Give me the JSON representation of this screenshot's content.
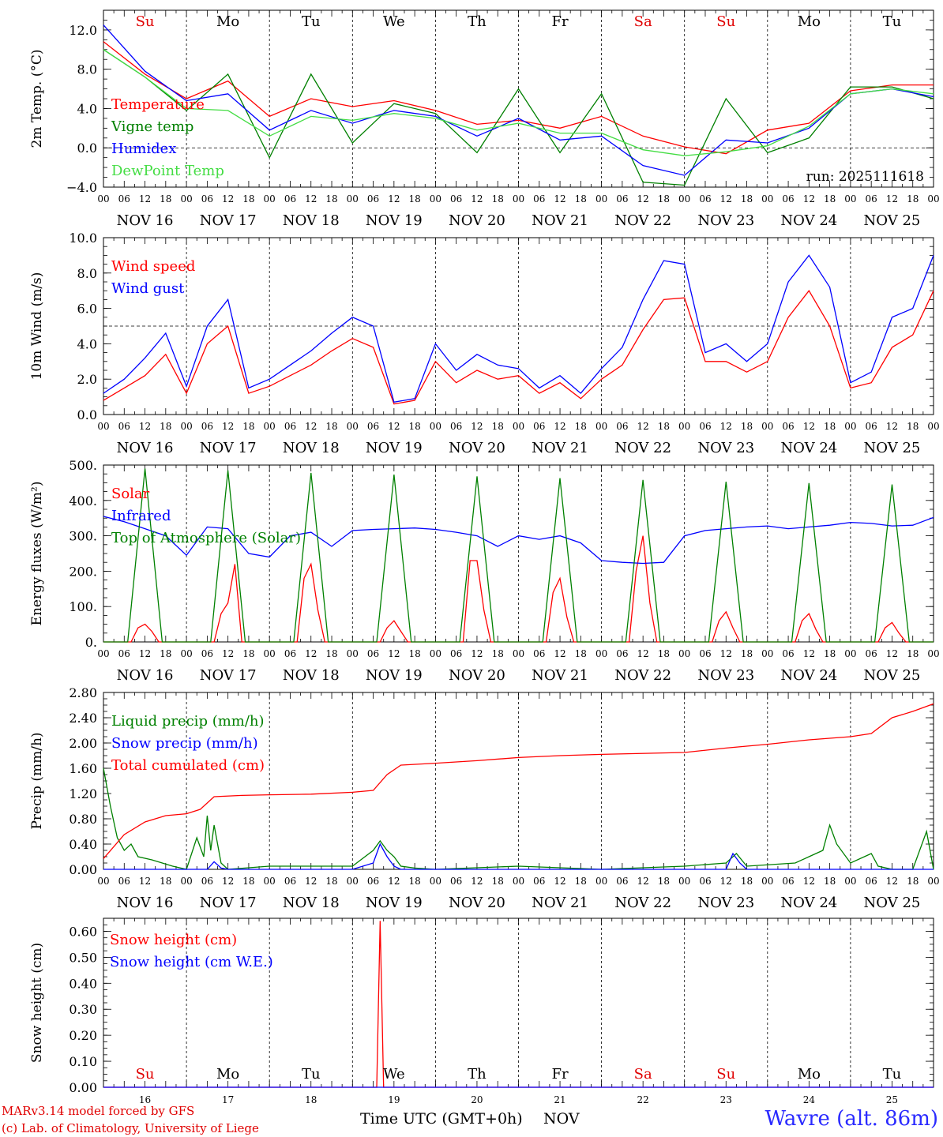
{
  "days": [
    "16",
    "17",
    "18",
    "19",
    "20",
    "21",
    "22",
    "23",
    "24",
    "25"
  ],
  "month": "NOV",
  "weekdays": [
    "Su",
    "Mo",
    "Tu",
    "We",
    "Th",
    "Fr",
    "Sa",
    "Su",
    "Mo",
    "Tu"
  ],
  "weekday_colors": [
    "#e00000",
    "#000000",
    "#000000",
    "#000000",
    "#000000",
    "#000000",
    "#e00000",
    "#e00000",
    "#000000",
    "#000000"
  ],
  "hour_ticks": [
    "00",
    "06",
    "12",
    "18"
  ],
  "hour_end": "00",
  "footer": {
    "model": "MARv3.14 model forced by GFS",
    "credit": "(c) Lab. of Climatology, University of Liege",
    "time_label": "Time UTC (GMT+0h)",
    "month_label": "NOV",
    "station": "Wavre (alt. 86m)"
  },
  "chart_data": [
    {
      "id": "temperature",
      "type": "line",
      "ylabel": "2m Temp. (°C)",
      "ylim": [
        -4,
        14
      ],
      "yticks": [
        -4,
        0,
        4,
        8,
        12
      ],
      "ytick_labels": [
        "−4.0",
        "0.0",
        "4.0",
        "8.0",
        "12.0"
      ],
      "dashed_ref": 0,
      "annotation": "run: 2025111618",
      "series": [
        {
          "name": "Temperature",
          "color": "#ff0000",
          "x": [
            0,
            12,
            24,
            36,
            48,
            60,
            72,
            84,
            96,
            108,
            120,
            132,
            144,
            156,
            168,
            180,
            192,
            204,
            216,
            228,
            240
          ],
          "values": [
            10.8,
            7.5,
            5.0,
            6.8,
            3.2,
            5.0,
            4.2,
            4.8,
            3.8,
            2.4,
            2.8,
            2.0,
            3.2,
            1.2,
            0.1,
            -0.6,
            1.8,
            2.5,
            5.8,
            6.4,
            6.4
          ]
        },
        {
          "name": "Vigne temp",
          "color": "#008000",
          "x": [
            0,
            12,
            24,
            36,
            48,
            60,
            72,
            84,
            96,
            108,
            120,
            132,
            144,
            156,
            168,
            180,
            192,
            204,
            216,
            228,
            240
          ],
          "values": [
            10.0,
            7.2,
            3.8,
            7.5,
            -1.0,
            7.5,
            0.5,
            4.5,
            3.5,
            -0.5,
            6.0,
            -0.5,
            5.5,
            -3.5,
            -3.8,
            5.0,
            -0.5,
            1.0,
            6.2,
            6.2,
            5.0
          ]
        },
        {
          "name": "Humidex",
          "color": "#0000ff",
          "x": [
            0,
            12,
            24,
            36,
            48,
            60,
            72,
            84,
            96,
            108,
            120,
            132,
            144,
            156,
            168,
            180,
            192,
            204,
            216,
            228,
            240
          ],
          "values": [
            12.5,
            7.8,
            4.8,
            5.5,
            1.8,
            3.8,
            2.5,
            3.8,
            3.2,
            1.2,
            3.0,
            0.8,
            1.2,
            -1.8,
            -2.8,
            0.8,
            0.5,
            2.0,
            5.5,
            6.0,
            5.2
          ]
        },
        {
          "name": "DewPoint Temp",
          "color": "#44dd44",
          "x": [
            0,
            12,
            24,
            36,
            48,
            60,
            72,
            84,
            96,
            108,
            120,
            132,
            144,
            156,
            168,
            180,
            192,
            204,
            216,
            228,
            240
          ],
          "values": [
            10.0,
            7.2,
            4.0,
            3.8,
            1.2,
            3.2,
            2.8,
            3.5,
            3.0,
            1.8,
            2.5,
            1.5,
            1.5,
            -0.2,
            -0.8,
            -0.4,
            0.2,
            2.2,
            5.5,
            6.0,
            5.5
          ]
        }
      ]
    },
    {
      "id": "wind",
      "type": "line",
      "ylabel": "10m Wind (m/s)",
      "ylim": [
        0,
        10
      ],
      "yticks": [
        0,
        2,
        4,
        6,
        8,
        10
      ],
      "ytick_labels": [
        "0.0",
        "2.0",
        "4.0",
        "6.0",
        "8.0",
        "10.0"
      ],
      "dashed_ref": 5,
      "series": [
        {
          "name": "Wind speed",
          "color": "#ff0000",
          "x": [
            0,
            6,
            12,
            18,
            24,
            30,
            36,
            42,
            48,
            54,
            60,
            66,
            72,
            78,
            84,
            90,
            96,
            102,
            108,
            114,
            120,
            126,
            132,
            138,
            144,
            150,
            156,
            162,
            168,
            174,
            180,
            186,
            192,
            198,
            204,
            210,
            216,
            222,
            228,
            234,
            240
          ],
          "values": [
            0.8,
            1.5,
            2.2,
            3.4,
            1.2,
            4.0,
            5.0,
            1.2,
            1.6,
            2.2,
            2.8,
            3.6,
            4.3,
            3.8,
            0.6,
            0.8,
            3.0,
            1.8,
            2.5,
            2.0,
            2.2,
            1.2,
            1.8,
            0.9,
            2.0,
            2.8,
            4.8,
            6.5,
            6.6,
            3.0,
            3.0,
            2.4,
            3.0,
            5.5,
            7.0,
            5.0,
            1.5,
            1.8,
            3.8,
            4.5,
            7.0
          ]
        },
        {
          "name": "Wind gust",
          "color": "#0000ff",
          "x": [
            0,
            6,
            12,
            18,
            24,
            30,
            36,
            42,
            48,
            54,
            60,
            66,
            72,
            78,
            84,
            90,
            96,
            102,
            108,
            114,
            120,
            126,
            132,
            138,
            144,
            150,
            156,
            162,
            168,
            174,
            180,
            186,
            192,
            198,
            204,
            210,
            216,
            222,
            228,
            234,
            240
          ],
          "values": [
            1.2,
            2.0,
            3.2,
            4.6,
            1.6,
            5.0,
            6.5,
            1.5,
            2.0,
            2.8,
            3.6,
            4.6,
            5.5,
            5.0,
            0.7,
            0.9,
            4.0,
            2.5,
            3.4,
            2.8,
            2.6,
            1.5,
            2.2,
            1.2,
            2.6,
            3.8,
            6.5,
            8.7,
            8.5,
            3.5,
            4.0,
            3.0,
            4.0,
            7.5,
            9.0,
            7.2,
            1.8,
            2.4,
            5.5,
            6.0,
            9.0
          ]
        }
      ]
    },
    {
      "id": "energy",
      "type": "line",
      "ylabel": "Energy fluxes (W/m²)",
      "ylim": [
        0,
        500
      ],
      "yticks": [
        0,
        100,
        200,
        300,
        400,
        500
      ],
      "ytick_labels": [
        "0.",
        "100.",
        "200.",
        "300.",
        "400.",
        "500."
      ],
      "series": [
        {
          "name": "Solar",
          "color": "#ff0000",
          "x": [
            0,
            8,
            10,
            12,
            14,
            16,
            24,
            32,
            34,
            36,
            38,
            40,
            48,
            56,
            58,
            60,
            62,
            64,
            72,
            80,
            82,
            84,
            86,
            88,
            96,
            104,
            106,
            108,
            110,
            112,
            120,
            128,
            130,
            132,
            134,
            136,
            144,
            152,
            154,
            156,
            158,
            160,
            168,
            176,
            178,
            180,
            182,
            184,
            192,
            200,
            202,
            204,
            206,
            208,
            216,
            224,
            226,
            228,
            230,
            232,
            240
          ],
          "values": [
            0,
            0,
            40,
            50,
            30,
            0,
            0,
            0,
            80,
            110,
            220,
            0,
            0,
            0,
            180,
            220,
            90,
            0,
            0,
            0,
            40,
            60,
            30,
            0,
            0,
            0,
            230,
            230,
            90,
            0,
            0,
            0,
            140,
            180,
            70,
            0,
            0,
            0,
            200,
            300,
            110,
            0,
            0,
            0,
            60,
            85,
            40,
            0,
            0,
            0,
            60,
            80,
            35,
            0,
            0,
            0,
            40,
            55,
            25,
            0,
            0
          ]
        },
        {
          "name": "Infrared",
          "color": "#0000ff",
          "x": [
            0,
            6,
            12,
            18,
            24,
            30,
            36,
            42,
            48,
            54,
            60,
            66,
            72,
            78,
            84,
            90,
            96,
            102,
            108,
            114,
            120,
            126,
            132,
            138,
            144,
            150,
            156,
            162,
            168,
            174,
            180,
            186,
            192,
            198,
            204,
            210,
            216,
            222,
            228,
            234,
            240
          ],
          "values": [
            355,
            340,
            320,
            300,
            245,
            325,
            320,
            250,
            240,
            300,
            310,
            270,
            315,
            318,
            320,
            322,
            318,
            310,
            300,
            270,
            300,
            290,
            300,
            280,
            230,
            225,
            222,
            225,
            300,
            315,
            320,
            325,
            328,
            320,
            325,
            330,
            338,
            335,
            328,
            330,
            352
          ]
        },
        {
          "name": "Top of Atmosphere (Solar)",
          "color": "#008000",
          "x": [
            0,
            7,
            12,
            17,
            24,
            31,
            36,
            41,
            48,
            55,
            60,
            65,
            72,
            79,
            84,
            89,
            96,
            103,
            108,
            113,
            120,
            127,
            132,
            137,
            144,
            151,
            156,
            161,
            168,
            175,
            180,
            185,
            192,
            199,
            204,
            209,
            216,
            223,
            228,
            233,
            240
          ],
          "values": [
            0,
            0,
            490,
            0,
            0,
            0,
            485,
            0,
            0,
            0,
            478,
            0,
            0,
            0,
            473,
            0,
            0,
            0,
            468,
            0,
            0,
            0,
            463,
            0,
            0,
            0,
            458,
            0,
            0,
            0,
            453,
            0,
            0,
            0,
            449,
            0,
            0,
            0,
            445,
            0,
            0
          ]
        }
      ]
    },
    {
      "id": "precip",
      "type": "line",
      "ylabel": "Precip (mm/h)",
      "ylim": [
        0,
        2.8
      ],
      "yticks": [
        0,
        0.4,
        0.8,
        1.2,
        1.6,
        2.0,
        2.4,
        2.8
      ],
      "ytick_labels": [
        "0.00",
        "0.40",
        "0.80",
        "1.20",
        "1.60",
        "2.00",
        "2.40",
        "2.80"
      ],
      "series": [
        {
          "name": "Liquid precip (mm/h)",
          "color": "#008000",
          "x": [
            0,
            2,
            4,
            6,
            8,
            10,
            14,
            20,
            24,
            27,
            29,
            30,
            31,
            32,
            34,
            36,
            48,
            72,
            78,
            80,
            82,
            84,
            86,
            90,
            96,
            120,
            144,
            168,
            180,
            183,
            186,
            200,
            204,
            208,
            210,
            212,
            216,
            222,
            224,
            228,
            234,
            238,
            240
          ],
          "values": [
            1.6,
            1.0,
            0.5,
            0.3,
            0.4,
            0.2,
            0.15,
            0.05,
            0.0,
            0.5,
            0.2,
            0.85,
            0.3,
            0.7,
            0.1,
            0.0,
            0.05,
            0.05,
            0.3,
            0.45,
            0.3,
            0.2,
            0.05,
            0.02,
            0.0,
            0.05,
            0.0,
            0.05,
            0.1,
            0.25,
            0.05,
            0.1,
            0.2,
            0.3,
            0.7,
            0.4,
            0.1,
            0.25,
            0.05,
            0.0,
            0.0,
            0.6,
            0.0
          ]
        },
        {
          "name": "Snow precip (mm/h)",
          "color": "#0000ff",
          "x": [
            0,
            24,
            30,
            32,
            34,
            36,
            48,
            72,
            78,
            80,
            82,
            84,
            86,
            96,
            120,
            144,
            168,
            180,
            182,
            184,
            186,
            192,
            240
          ],
          "values": [
            0,
            0,
            0,
            0.12,
            0.02,
            0,
            0,
            0,
            0.1,
            0.4,
            0.2,
            0.05,
            0.0,
            0.0,
            0.0,
            0.0,
            0.0,
            0.0,
            0.25,
            0.1,
            0.0,
            0.0,
            0.0
          ]
        },
        {
          "name": "Total cumulated (cm)",
          "color": "#ff0000",
          "x": [
            0,
            6,
            12,
            18,
            24,
            28,
            32,
            40,
            48,
            60,
            72,
            78,
            82,
            86,
            96,
            108,
            120,
            132,
            144,
            168,
            180,
            186,
            192,
            204,
            216,
            222,
            228,
            234,
            240
          ],
          "values": [
            0.17,
            0.55,
            0.75,
            0.85,
            0.88,
            0.95,
            1.15,
            1.17,
            1.18,
            1.19,
            1.22,
            1.25,
            1.5,
            1.65,
            1.68,
            1.72,
            1.77,
            1.8,
            1.82,
            1.85,
            1.92,
            1.95,
            1.98,
            2.05,
            2.1,
            2.15,
            2.4,
            2.5,
            2.62
          ]
        }
      ]
    },
    {
      "id": "snow",
      "type": "line",
      "ylabel": "Snow height (cm)",
      "ylim": [
        0,
        0.65
      ],
      "yticks": [
        0,
        0.1,
        0.2,
        0.3,
        0.4,
        0.5,
        0.6
      ],
      "ytick_labels": [
        "0.00",
        "0.10",
        "0.20",
        "0.30",
        "0.40",
        "0.50",
        "0.60"
      ],
      "series": [
        {
          "name": "Snow height (cm)",
          "color": "#ff0000",
          "x": [
            0,
            79,
            80,
            81,
            240
          ],
          "values": [
            0,
            0,
            0.64,
            0,
            0
          ]
        },
        {
          "name": "Snow height (cm W.E.)",
          "color": "#0000ff",
          "x": [
            0,
            240
          ],
          "values": [
            0,
            0
          ]
        }
      ]
    }
  ]
}
